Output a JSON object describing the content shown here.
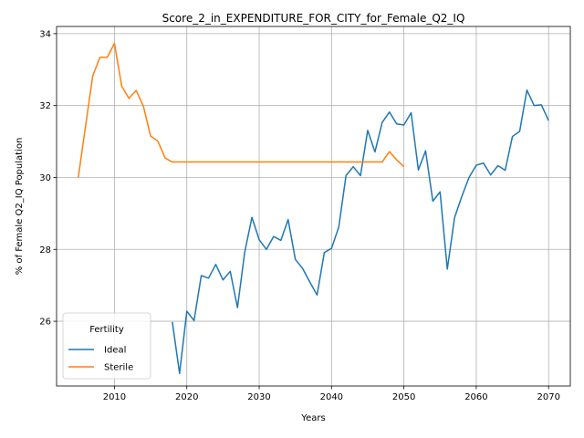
{
  "chart_data": {
    "type": "line",
    "title": "Score_2_in_EXPENDITURE_FOR_CITY_for_Female_Q2_IQ",
    "xlabel": "Years",
    "ylabel": "% of Female Q2_IQ Population",
    "xlim": [
      2002,
      2073
    ],
    "ylim": [
      24.2,
      34.2
    ],
    "xticks": [
      2010,
      2020,
      2030,
      2040,
      2050,
      2060,
      2070
    ],
    "yticks": [
      26,
      28,
      30,
      32,
      34
    ],
    "grid": true,
    "legend": {
      "title": "Fertility",
      "placement": "lower-left"
    },
    "series": [
      {
        "name": "Ideal",
        "color": "#1f77b4",
        "x": [
          2018,
          2019,
          2020,
          2021,
          2022,
          2023,
          2024,
          2025,
          2026,
          2027,
          2028,
          2029,
          2030,
          2031,
          2032,
          2033,
          2034,
          2035,
          2036,
          2037,
          2038,
          2039,
          2040,
          2041,
          2042,
          2043,
          2044,
          2045,
          2046,
          2047,
          2048,
          2049,
          2050,
          2051,
          2052,
          2053,
          2054,
          2055,
          2056,
          2057,
          2058,
          2059,
          2060,
          2061,
          2062,
          2063,
          2064,
          2065,
          2066,
          2067,
          2068,
          2069,
          2070
        ],
        "y": [
          25.98,
          24.55,
          26.28,
          26.02,
          27.27,
          27.2,
          27.58,
          27.15,
          27.39,
          26.38,
          27.92,
          28.89,
          28.27,
          28.0,
          28.36,
          28.25,
          28.83,
          27.72,
          27.47,
          27.09,
          26.73,
          27.91,
          28.03,
          28.62,
          30.05,
          30.3,
          30.05,
          31.31,
          30.71,
          31.53,
          31.82,
          31.49,
          31.46,
          31.8,
          30.21,
          30.74,
          29.34,
          29.6,
          27.45,
          28.88,
          29.47,
          30.0,
          30.34,
          30.4,
          30.07,
          30.33,
          30.2,
          31.14,
          31.28,
          32.43,
          32.0,
          32.02,
          31.58
        ]
      },
      {
        "name": "Sterile",
        "color": "#ff7f0e",
        "x": [
          2005,
          2006,
          2007,
          2008,
          2009,
          2010,
          2011,
          2012,
          2013,
          2014,
          2015,
          2016,
          2017,
          2018,
          2019,
          2020,
          2025,
          2030,
          2035,
          2040,
          2045,
          2046,
          2047,
          2048,
          2049,
          2050
        ],
        "y": [
          30.0,
          31.42,
          32.83,
          33.34,
          33.34,
          33.73,
          32.54,
          32.2,
          32.42,
          31.98,
          31.15,
          31.01,
          30.54,
          30.43,
          30.43,
          30.43,
          30.43,
          30.43,
          30.43,
          30.43,
          30.43,
          30.43,
          30.43,
          30.72,
          30.49,
          30.3
        ]
      }
    ]
  }
}
